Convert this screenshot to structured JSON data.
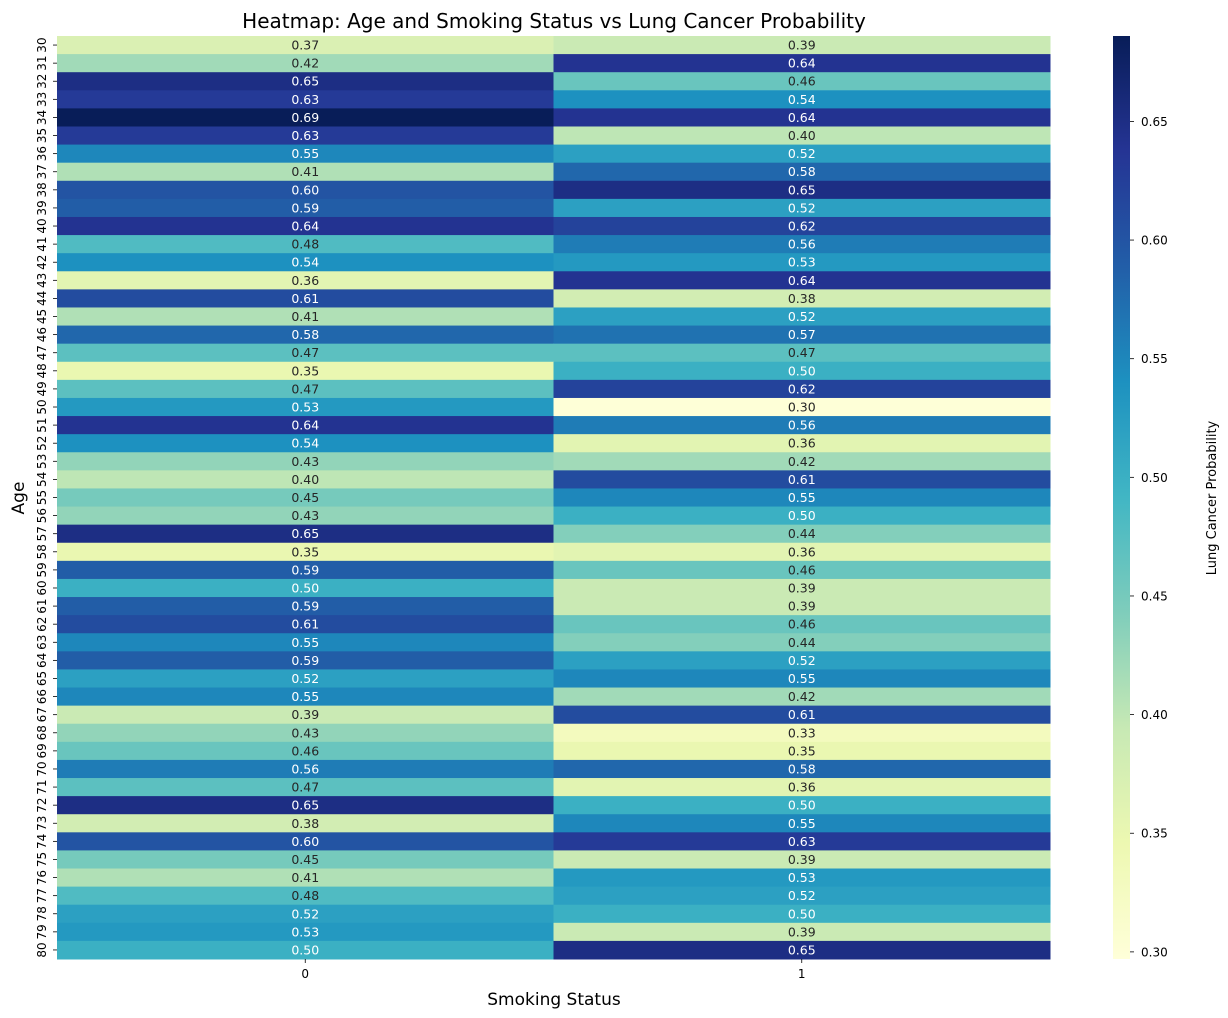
{
  "chart_data": {
    "type": "heatmap",
    "title": "Heatmap: Age and Smoking Status vs Lung Cancer Probability",
    "xlabel": "Smoking Status",
    "ylabel": "Age",
    "colorbar_label": "Lung Cancer Probability",
    "colormap": "YlGnBu",
    "color_range": [
      0.297,
      0.686
    ],
    "colorbar_ticks": [
      "0.30",
      "0.35",
      "0.40",
      "0.45",
      "0.50",
      "0.55",
      "0.60",
      "0.65"
    ],
    "columns": [
      "0",
      "1"
    ],
    "rows": [
      "30",
      "31",
      "32",
      "33",
      "34",
      "35",
      "36",
      "37",
      "38",
      "39",
      "40",
      "41",
      "42",
      "43",
      "44",
      "45",
      "46",
      "47",
      "48",
      "49",
      "50",
      "51",
      "52",
      "53",
      "54",
      "55",
      "56",
      "57",
      "58",
      "59",
      "60",
      "61",
      "62",
      "63",
      "64",
      "65",
      "66",
      "67",
      "68",
      "69",
      "70",
      "71",
      "72",
      "73",
      "74",
      "75",
      "76",
      "77",
      "78",
      "79",
      "80"
    ],
    "values": [
      [
        0.37,
        0.39
      ],
      [
        0.42,
        0.64
      ],
      [
        0.65,
        0.46
      ],
      [
        0.63,
        0.54
      ],
      [
        0.69,
        0.64
      ],
      [
        0.63,
        0.4
      ],
      [
        0.55,
        0.52
      ],
      [
        0.41,
        0.58
      ],
      [
        0.6,
        0.65
      ],
      [
        0.59,
        0.52
      ],
      [
        0.64,
        0.62
      ],
      [
        0.48,
        0.56
      ],
      [
        0.54,
        0.53
      ],
      [
        0.36,
        0.64
      ],
      [
        0.61,
        0.38
      ],
      [
        0.41,
        0.52
      ],
      [
        0.58,
        0.57
      ],
      [
        0.47,
        0.47
      ],
      [
        0.35,
        0.5
      ],
      [
        0.47,
        0.62
      ],
      [
        0.53,
        0.3
      ],
      [
        0.64,
        0.56
      ],
      [
        0.54,
        0.36
      ],
      [
        0.43,
        0.42
      ],
      [
        0.4,
        0.61
      ],
      [
        0.45,
        0.55
      ],
      [
        0.43,
        0.5
      ],
      [
        0.65,
        0.44
      ],
      [
        0.35,
        0.36
      ],
      [
        0.59,
        0.46
      ],
      [
        0.5,
        0.39
      ],
      [
        0.59,
        0.39
      ],
      [
        0.61,
        0.46
      ],
      [
        0.55,
        0.44
      ],
      [
        0.59,
        0.52
      ],
      [
        0.52,
        0.55
      ],
      [
        0.55,
        0.42
      ],
      [
        0.39,
        0.61
      ],
      [
        0.43,
        0.33
      ],
      [
        0.46,
        0.35
      ],
      [
        0.56,
        0.58
      ],
      [
        0.47,
        0.36
      ],
      [
        0.65,
        0.5
      ],
      [
        0.38,
        0.55
      ],
      [
        0.6,
        0.63
      ],
      [
        0.45,
        0.39
      ],
      [
        0.41,
        0.53
      ],
      [
        0.48,
        0.52
      ],
      [
        0.52,
        0.5
      ],
      [
        0.53,
        0.39
      ],
      [
        0.5,
        0.65
      ]
    ]
  }
}
